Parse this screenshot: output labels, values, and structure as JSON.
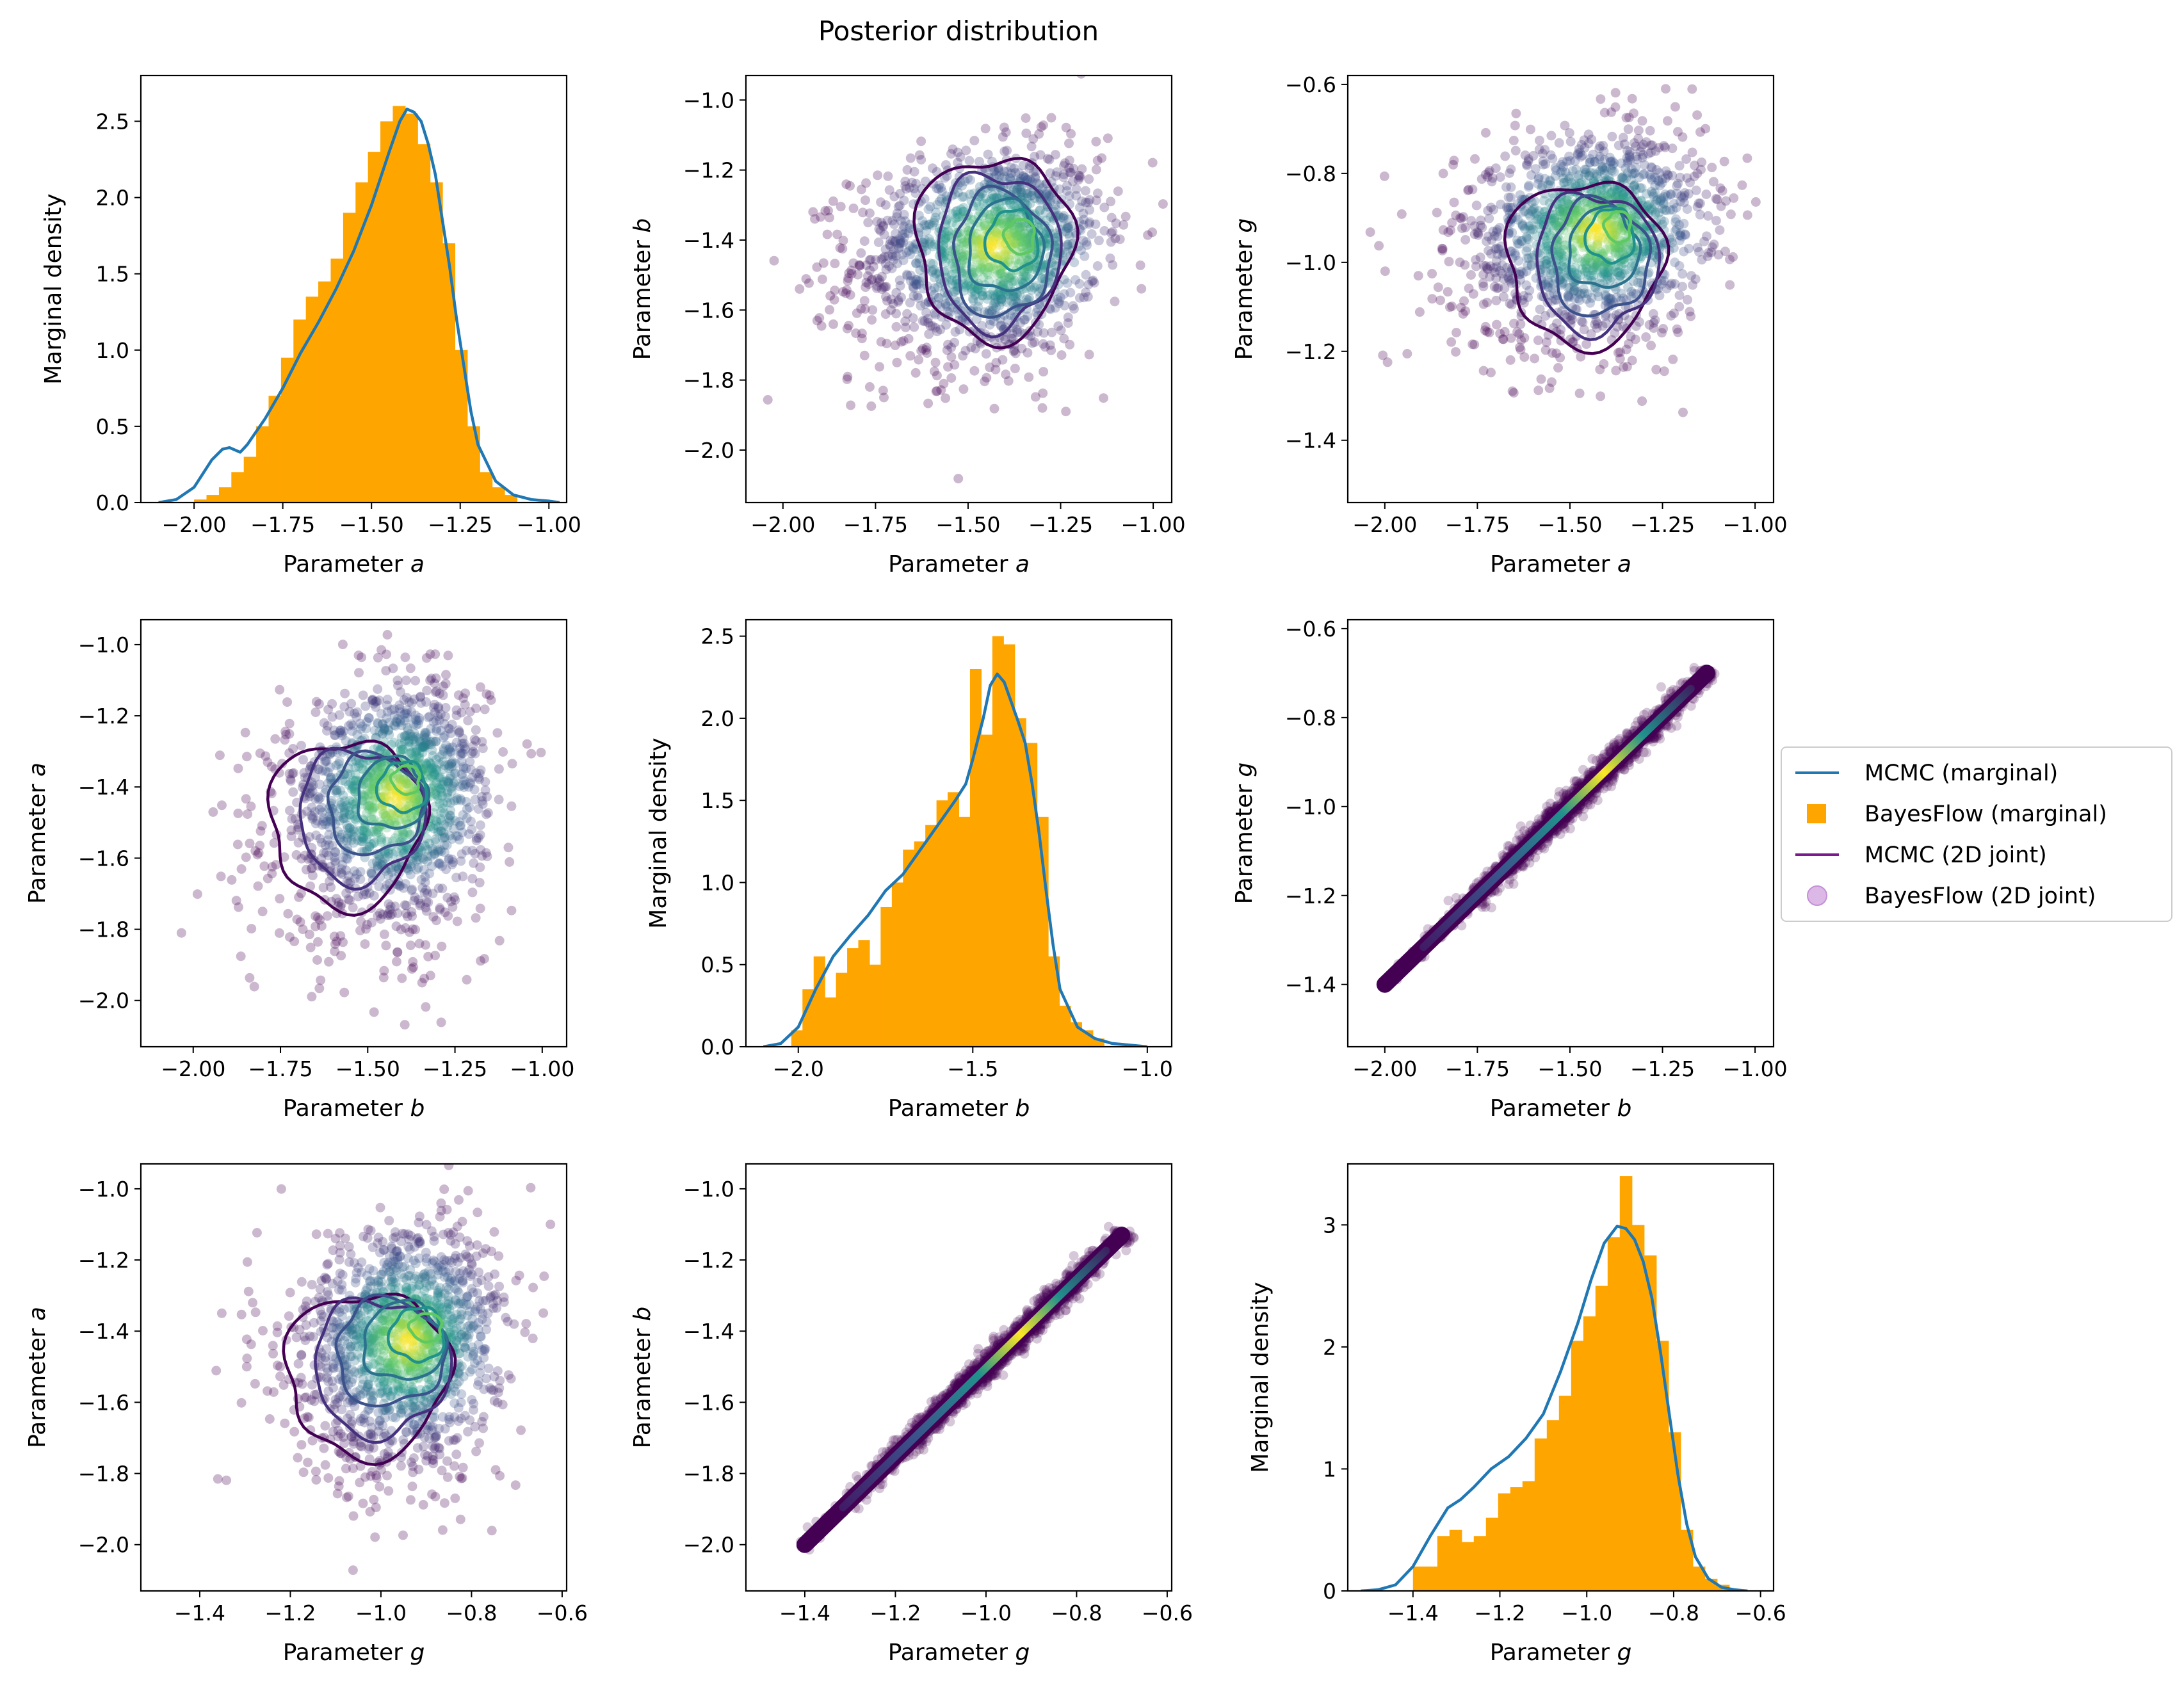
{
  "figure": {
    "title": "Posterior distribution"
  },
  "colors": {
    "mcmc_marginal": "#1f77b4",
    "bayesflow_marginal": "#ffa500",
    "mcmc_joint": "#440154",
    "bayesflow_joint": "#440154",
    "viridis": [
      "#440154",
      "#3b528b",
      "#21918c",
      "#5ec962",
      "#fde725"
    ]
  },
  "legend": {
    "placement": "right-center",
    "entries": [
      {
        "label": "MCMC (marginal)",
        "marker": "line",
        "color": "#1f77b4"
      },
      {
        "label": "BayesFlow (marginal)",
        "marker": "square",
        "color": "#ffa500"
      },
      {
        "label": "MCMC (2D joint)",
        "marker": "line",
        "color": "#7b1a8c"
      },
      {
        "label": "BayesFlow (2D joint)",
        "marker": "circle",
        "color": "#dcb8e6"
      }
    ]
  },
  "chart_data": [
    {
      "type": "histogram+density",
      "param": "a",
      "xlabel": "Parameter",
      "xlabel_var": "a",
      "ylabel": "Marginal density",
      "ylabel_var": "",
      "xlim": [
        -2.15,
        -0.95
      ],
      "ylim": [
        0,
        2.8
      ],
      "xticks": [
        -2.0,
        -1.75,
        -1.5,
        -1.25,
        -1.0
      ],
      "xtick_labels": [
        "−2.00",
        "−1.75",
        "−1.50",
        "−1.25",
        "−1.00"
      ],
      "yticks": [
        0,
        0.5,
        1.0,
        1.5,
        2.0,
        2.5
      ],
      "ytick_labels": [
        "0.0",
        "0.5",
        "1.0",
        "1.5",
        "2.0",
        "2.5"
      ],
      "hist": {
        "edges": [
          -2.0,
          -1.965,
          -1.93,
          -1.895,
          -1.86,
          -1.825,
          -1.79,
          -1.755,
          -1.72,
          -1.685,
          -1.65,
          -1.615,
          -1.58,
          -1.545,
          -1.51,
          -1.475,
          -1.44,
          -1.405,
          -1.37,
          -1.335,
          -1.3,
          -1.265,
          -1.23,
          -1.195,
          -1.16,
          -1.125,
          -1.09
        ],
        "values": [
          0.02,
          0.05,
          0.1,
          0.2,
          0.3,
          0.5,
          0.7,
          0.95,
          1.2,
          1.35,
          1.45,
          1.6,
          1.9,
          2.1,
          2.3,
          2.5,
          2.6,
          2.55,
          2.35,
          2.1,
          1.7,
          1.0,
          0.5,
          0.2,
          0.1,
          0.05
        ]
      },
      "kde": {
        "x": [
          -2.1,
          -2.05,
          -2.0,
          -1.95,
          -1.92,
          -1.9,
          -1.87,
          -1.85,
          -1.8,
          -1.75,
          -1.7,
          -1.65,
          -1.6,
          -1.55,
          -1.5,
          -1.45,
          -1.42,
          -1.4,
          -1.38,
          -1.36,
          -1.34,
          -1.32,
          -1.3,
          -1.28,
          -1.26,
          -1.24,
          -1.22,
          -1.2,
          -1.15,
          -1.1,
          -1.05,
          -1.0,
          -0.97
        ],
        "y": [
          0.0,
          0.02,
          0.1,
          0.28,
          0.35,
          0.36,
          0.33,
          0.38,
          0.55,
          0.75,
          0.98,
          1.18,
          1.4,
          1.65,
          1.95,
          2.3,
          2.5,
          2.58,
          2.56,
          2.5,
          2.35,
          2.15,
          1.85,
          1.55,
          1.2,
          0.9,
          0.6,
          0.38,
          0.14,
          0.05,
          0.02,
          0.01,
          0.0
        ]
      }
    },
    {
      "type": "scatter+contour",
      "xparam": "a",
      "yparam": "b",
      "xlabel": "Parameter",
      "xlabel_var": "a",
      "ylabel": "Parameter",
      "ylabel_var": "b",
      "xlim": [
        -2.1,
        -0.95
      ],
      "ylim": [
        -2.15,
        -0.93
      ],
      "xticks": [
        -2.0,
        -1.75,
        -1.5,
        -1.25,
        -1.0
      ],
      "xtick_labels": [
        "−2.00",
        "−1.75",
        "−1.50",
        "−1.25",
        "−1.00"
      ],
      "yticks": [
        -2.0,
        -1.8,
        -1.6,
        -1.4,
        -1.2,
        -1.0
      ],
      "ytick_labels": [
        "−2.0",
        "−1.8",
        "−1.6",
        "−1.4",
        "−1.2",
        "−1.0"
      ],
      "correlation": 0.15,
      "center": [
        -1.43,
        -1.42
      ],
      "spread": [
        0.19,
        0.17
      ],
      "contours": [
        [
          -1.43,
          -1.42,
          0.42,
          0.52
        ],
        [
          -1.42,
          -1.43,
          0.33,
          0.44
        ],
        [
          -1.41,
          -1.44,
          0.26,
          0.36
        ],
        [
          -1.4,
          -1.42,
          0.2,
          0.26
        ],
        [
          -1.38,
          -1.4,
          0.14,
          0.17
        ],
        [
          -1.36,
          -1.39,
          0.08,
          0.1
        ]
      ]
    },
    {
      "type": "scatter+contour",
      "xparam": "a",
      "yparam": "g",
      "xlabel": "Parameter",
      "xlabel_var": "a",
      "ylabel": "Parameter",
      "ylabel_var": "g",
      "xlim": [
        -2.1,
        -0.95
      ],
      "ylim": [
        -1.54,
        -0.58
      ],
      "xticks": [
        -2.0,
        -1.75,
        -1.5,
        -1.25,
        -1.0
      ],
      "xtick_labels": [
        "−2.00",
        "−1.75",
        "−1.50",
        "−1.25",
        "−1.00"
      ],
      "yticks": [
        -1.4,
        -1.2,
        -1.0,
        -0.8,
        -0.6
      ],
      "ytick_labels": [
        "−1.4",
        "−1.2",
        "−1.0",
        "−0.8",
        "−0.6"
      ],
      "correlation": 0.15,
      "center": [
        -1.43,
        -0.93
      ],
      "spread": [
        0.19,
        0.13
      ],
      "contours": [
        [
          -1.46,
          -1.0,
          0.42,
          0.37
        ],
        [
          -1.43,
          -1.0,
          0.33,
          0.31
        ],
        [
          -1.42,
          -0.99,
          0.26,
          0.26
        ],
        [
          -1.41,
          -0.97,
          0.19,
          0.18
        ],
        [
          -1.39,
          -0.94,
          0.13,
          0.12
        ],
        [
          -1.37,
          -0.92,
          0.07,
          0.07
        ]
      ]
    },
    {
      "type": "scatter+contour",
      "xparam": "b",
      "yparam": "a",
      "xlabel": "Parameter",
      "xlabel_var": "b",
      "ylabel": "Parameter",
      "ylabel_var": "a",
      "xlim": [
        -2.15,
        -0.93
      ],
      "ylim": [
        -2.13,
        -0.93
      ],
      "xticks": [
        -2.0,
        -1.75,
        -1.5,
        -1.25,
        -1.0
      ],
      "xtick_labels": [
        "−2.00",
        "−1.75",
        "−1.50",
        "−1.25",
        "−1.00"
      ],
      "yticks": [
        -2.0,
        -1.8,
        -1.6,
        -1.4,
        -1.2,
        -1.0
      ],
      "ytick_labels": [
        "−2.0",
        "−1.8",
        "−1.6",
        "−1.4",
        "−1.2",
        "−1.0"
      ],
      "correlation": 0.15,
      "center": [
        -1.42,
        -1.43
      ],
      "spread": [
        0.17,
        0.19
      ],
      "contours": [
        [
          -1.56,
          -1.5,
          0.44,
          0.47
        ],
        [
          -1.52,
          -1.48,
          0.36,
          0.37
        ],
        [
          -1.48,
          -1.45,
          0.27,
          0.28
        ],
        [
          -1.43,
          -1.42,
          0.2,
          0.2
        ],
        [
          -1.4,
          -1.4,
          0.14,
          0.14
        ],
        [
          -1.39,
          -1.38,
          0.08,
          0.08
        ]
      ]
    },
    {
      "type": "histogram+density",
      "param": "b",
      "xlabel": "Parameter",
      "xlabel_var": "b",
      "ylabel": "Marginal density",
      "ylabel_var": "",
      "xlim": [
        -2.15,
        -0.93
      ],
      "ylim": [
        0,
        2.6
      ],
      "xticks": [
        -2.0,
        -1.5,
        -1.0
      ],
      "xtick_labels": [
        "−2.0",
        "−1.5",
        "−1.0"
      ],
      "yticks": [
        0,
        0.5,
        1.0,
        1.5,
        2.0,
        2.5
      ],
      "ytick_labels": [
        "0.0",
        "0.5",
        "1.0",
        "1.5",
        "2.0",
        "2.5"
      ],
      "hist": {
        "edges": [
          -2.02,
          -1.988,
          -1.956,
          -1.924,
          -1.892,
          -1.86,
          -1.828,
          -1.796,
          -1.764,
          -1.732,
          -1.7,
          -1.668,
          -1.636,
          -1.604,
          -1.572,
          -1.54,
          -1.508,
          -1.476,
          -1.444,
          -1.412,
          -1.38,
          -1.348,
          -1.316,
          -1.284,
          -1.252,
          -1.22,
          -1.188,
          -1.156,
          -1.124
        ],
        "values": [
          0.1,
          0.35,
          0.55,
          0.3,
          0.45,
          0.6,
          0.65,
          0.5,
          0.85,
          1.0,
          1.2,
          1.25,
          1.35,
          1.5,
          1.55,
          1.4,
          2.3,
          1.9,
          2.5,
          2.45,
          2.0,
          1.85,
          1.4,
          0.55,
          0.25,
          0.15,
          0.1,
          0.05
        ]
      },
      "kde": {
        "x": [
          -2.1,
          -2.05,
          -2.0,
          -1.95,
          -1.9,
          -1.85,
          -1.8,
          -1.75,
          -1.7,
          -1.65,
          -1.6,
          -1.55,
          -1.52,
          -1.5,
          -1.47,
          -1.45,
          -1.43,
          -1.41,
          -1.39,
          -1.37,
          -1.35,
          -1.33,
          -1.31,
          -1.29,
          -1.27,
          -1.25,
          -1.2,
          -1.15,
          -1.1,
          -1.05,
          -1.0
        ],
        "y": [
          0.0,
          0.02,
          0.12,
          0.35,
          0.55,
          0.68,
          0.8,
          0.95,
          1.05,
          1.2,
          1.35,
          1.5,
          1.6,
          1.75,
          2.0,
          2.2,
          2.27,
          2.22,
          2.1,
          1.98,
          1.85,
          1.6,
          1.3,
          0.95,
          0.62,
          0.35,
          0.12,
          0.05,
          0.02,
          0.01,
          0.0
        ]
      }
    },
    {
      "type": "scatter+contour",
      "xparam": "b",
      "yparam": "g",
      "xlabel": "Parameter",
      "xlabel_var": "b",
      "ylabel": "Parameter",
      "ylabel_var": "g",
      "xlim": [
        -2.1,
        -0.95
      ],
      "ylim": [
        -1.54,
        -0.58
      ],
      "xticks": [
        -2.0,
        -1.75,
        -1.5,
        -1.25,
        -1.0
      ],
      "xtick_labels": [
        "−2.00",
        "−1.75",
        "−1.50",
        "−1.25",
        "−1.00"
      ],
      "yticks": [
        -1.4,
        -1.2,
        -1.0,
        -0.8,
        -0.6
      ],
      "ytick_labels": [
        "−1.4",
        "−1.2",
        "−1.0",
        "−0.8",
        "−0.6"
      ],
      "diagonal": {
        "x0": -2.0,
        "y0": -1.4,
        "x1": -1.13,
        "y1": -0.7
      },
      "center": [
        -1.42,
        -0.93
      ]
    },
    {
      "type": "scatter+contour",
      "xparam": "g",
      "yparam": "a",
      "xlabel": "Parameter",
      "xlabel_var": "g",
      "ylabel": "Parameter",
      "ylabel_var": "a",
      "xlim": [
        -1.53,
        -0.59
      ],
      "ylim": [
        -2.13,
        -0.93
      ],
      "xticks": [
        -1.4,
        -1.2,
        -1.0,
        -0.8,
        -0.6
      ],
      "xtick_labels": [
        "−1.4",
        "−1.2",
        "−1.0",
        "−0.8",
        "−0.6"
      ],
      "yticks": [
        -2.0,
        -1.8,
        -1.6,
        -1.4,
        -1.2,
        -1.0
      ],
      "ytick_labels": [
        "−2.0",
        "−1.8",
        "−1.6",
        "−1.4",
        "−1.2",
        "−1.0"
      ],
      "correlation": 0.15,
      "center": [
        -0.94,
        -1.43
      ],
      "spread": [
        0.13,
        0.19
      ],
      "contours": [
        [
          -1.03,
          -1.52,
          0.36,
          0.46
        ],
        [
          -1.0,
          -1.5,
          0.3,
          0.38
        ],
        [
          -0.98,
          -1.46,
          0.24,
          0.3
        ],
        [
          -0.95,
          -1.43,
          0.18,
          0.22
        ],
        [
          -0.92,
          -1.41,
          0.12,
          0.15
        ],
        [
          -0.9,
          -1.39,
          0.07,
          0.08
        ]
      ]
    },
    {
      "type": "scatter+contour",
      "xparam": "g",
      "yparam": "b",
      "xlabel": "Parameter",
      "xlabel_var": "g",
      "ylabel": "Parameter",
      "ylabel_var": "b",
      "xlim": [
        -1.53,
        -0.59
      ],
      "ylim": [
        -2.13,
        -0.93
      ],
      "xticks": [
        -1.4,
        -1.2,
        -1.0,
        -0.8,
        -0.6
      ],
      "xtick_labels": [
        "−1.4",
        "−1.2",
        "−1.0",
        "−0.8",
        "−0.6"
      ],
      "yticks": [
        -2.0,
        -1.8,
        -1.6,
        -1.4,
        -1.2,
        -1.0
      ],
      "ytick_labels": [
        "−2.0",
        "−1.8",
        "−1.6",
        "−1.4",
        "−1.2",
        "−1.0"
      ],
      "diagonal": {
        "x0": -1.4,
        "y0": -2.0,
        "x1": -0.7,
        "y1": -1.13
      },
      "center": [
        -0.93,
        -1.42
      ]
    },
    {
      "type": "histogram+density",
      "param": "g",
      "xlabel": "Parameter",
      "xlabel_var": "g",
      "ylabel": "Marginal density",
      "ylabel_var": "",
      "xlim": [
        -1.55,
        -0.57
      ],
      "ylim": [
        0,
        3.5
      ],
      "xticks": [
        -1.4,
        -1.2,
        -1.0,
        -0.8,
        -0.6
      ],
      "xtick_labels": [
        "−1.4",
        "−1.2",
        "−1.0",
        "−0.8",
        "−0.6"
      ],
      "yticks": [
        0,
        1,
        2,
        3
      ],
      "ytick_labels": [
        "0",
        "1",
        "2",
        "3"
      ],
      "hist": {
        "edges": [
          -1.4,
          -1.372,
          -1.344,
          -1.316,
          -1.288,
          -1.26,
          -1.232,
          -1.204,
          -1.176,
          -1.148,
          -1.12,
          -1.092,
          -1.064,
          -1.036,
          -1.008,
          -0.98,
          -0.952,
          -0.924,
          -0.896,
          -0.868,
          -0.84,
          -0.812,
          -0.784,
          -0.756,
          -0.728,
          -0.7,
          -0.672
        ],
        "values": [
          0.2,
          0.2,
          0.45,
          0.5,
          0.4,
          0.45,
          0.6,
          0.8,
          0.85,
          0.9,
          1.25,
          1.4,
          1.6,
          2.05,
          2.25,
          2.5,
          2.9,
          3.4,
          3.0,
          2.75,
          2.05,
          1.3,
          0.5,
          0.2,
          0.1,
          0.05
        ]
      },
      "kde": {
        "x": [
          -1.52,
          -1.48,
          -1.44,
          -1.4,
          -1.36,
          -1.32,
          -1.29,
          -1.26,
          -1.22,
          -1.18,
          -1.14,
          -1.1,
          -1.06,
          -1.02,
          -0.99,
          -0.96,
          -0.93,
          -0.91,
          -0.89,
          -0.87,
          -0.85,
          -0.83,
          -0.81,
          -0.79,
          -0.77,
          -0.75,
          -0.72,
          -0.69,
          -0.66,
          -0.63
        ],
        "y": [
          0.0,
          0.01,
          0.05,
          0.2,
          0.45,
          0.68,
          0.75,
          0.85,
          1.0,
          1.1,
          1.25,
          1.45,
          1.8,
          2.2,
          2.55,
          2.85,
          2.99,
          2.97,
          2.88,
          2.7,
          2.4,
          1.95,
          1.45,
          0.95,
          0.55,
          0.28,
          0.1,
          0.03,
          0.01,
          0.0
        ]
      }
    }
  ]
}
